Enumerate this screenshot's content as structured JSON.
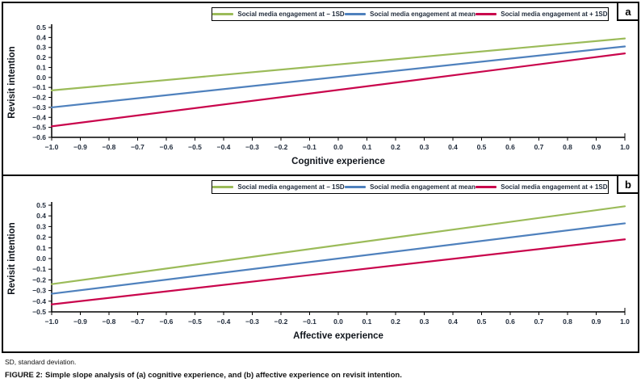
{
  "figure": {
    "footnote": "SD, standard deviation.",
    "caption_label": "FIGURE 2:",
    "caption_text": "Simple slope analysis of (a) cognitive experience, and (b) affective experience on revisit intention."
  },
  "colors": {
    "minus1sd_green": "#9BBB59",
    "mean_blue": "#4F81BD",
    "plus1sd_red": "#C9054C",
    "axis_line": "#000000",
    "tick_text": "#1F2A3A",
    "title_text": "#10151C"
  },
  "chart_data": [
    {
      "type": "line",
      "panel_label": "a",
      "title": "",
      "xlabel": "Cognitive experience",
      "ylabel": "Revisit intention",
      "xlim": [
        -1.0,
        1.0
      ],
      "ylim": [
        -0.6,
        0.5
      ],
      "grid": false,
      "legend_position": "top",
      "x_ticks": [
        -1.0,
        -0.9,
        -0.8,
        -0.7,
        -0.6,
        -0.5,
        -0.4,
        -0.3,
        -0.2,
        -0.1,
        0.0,
        0.1,
        0.2,
        0.3,
        0.4,
        0.5,
        0.6,
        0.7,
        0.8,
        0.9,
        1.0
      ],
      "x_tick_labels": [
        "−1.0",
        "−0.9",
        "−0.8",
        "−0.7",
        "−0.6",
        "−0.5",
        "−0.4",
        "−0.3",
        "−0.2",
        "−0.1",
        "0.0",
        "0.1",
        "0.2",
        "0.3",
        "0.4",
        "0.5",
        "0.6",
        "0.7",
        "0.8",
        "0.9",
        "1.0"
      ],
      "y_ticks": [
        0.5,
        0.4,
        0.3,
        0.2,
        0.1,
        0.0,
        -0.1,
        -0.2,
        -0.3,
        -0.4,
        -0.5,
        -0.6
      ],
      "y_tick_labels": [
        "0.5",
        "0.4",
        "0.3",
        "0.2",
        "0.1",
        "0.0",
        "−0.1",
        "−0.2",
        "−0.3",
        "−0.4",
        "−0.5",
        "−0.6"
      ],
      "series": [
        {
          "name": "Social media engagement at − 1SD",
          "color": "#9BBB59",
          "x": [
            -1.0,
            1.0
          ],
          "y": [
            -0.13,
            0.39
          ]
        },
        {
          "name": "Social media engagement at mean",
          "color": "#4F81BD",
          "x": [
            -1.0,
            1.0
          ],
          "y": [
            -0.3,
            0.31
          ]
        },
        {
          "name": "Social media engagement at + 1SD",
          "color": "#C9054C",
          "x": [
            -1.0,
            1.0
          ],
          "y": [
            -0.49,
            0.24
          ]
        }
      ]
    },
    {
      "type": "line",
      "panel_label": "b",
      "title": "",
      "xlabel": "Affective experience",
      "ylabel": "Revisit intention",
      "xlim": [
        -1.0,
        1.0
      ],
      "ylim": [
        -0.5,
        0.5
      ],
      "grid": false,
      "legend_position": "top",
      "x_ticks": [
        -1.0,
        -0.9,
        -0.8,
        -0.7,
        -0.6,
        -0.5,
        -0.4,
        -0.3,
        -0.2,
        -0.1,
        0.0,
        0.1,
        0.2,
        0.3,
        0.4,
        0.5,
        0.6,
        0.7,
        0.8,
        0.9,
        1.0
      ],
      "x_tick_labels": [
        "−1.0",
        "−0.9",
        "−0.8",
        "−0.7",
        "−0.6",
        "−0.5",
        "−0.4",
        "−0.3",
        "−0.2",
        "−0.1",
        "0.0",
        "0.1",
        "0.2",
        "0.3",
        "0.4",
        "0.5",
        "0.6",
        "0.7",
        "0.8",
        "0.9",
        "1.0"
      ],
      "y_ticks": [
        0.5,
        0.4,
        0.3,
        0.2,
        0.1,
        0.0,
        -0.1,
        -0.2,
        -0.3,
        -0.4,
        -0.5
      ],
      "y_tick_labels": [
        "0.5",
        "0.4",
        "0.3",
        "0.2",
        "0.1",
        "0.0",
        "−0.1",
        "−0.2",
        "−0.3",
        "−0.4",
        "−0.5"
      ],
      "series": [
        {
          "name": "Social media engagement at − 1SD",
          "color": "#9BBB59",
          "x": [
            -1.0,
            1.0
          ],
          "y": [
            -0.24,
            0.49
          ]
        },
        {
          "name": "Social media engagement at mean",
          "color": "#4F81BD",
          "x": [
            -1.0,
            1.0
          ],
          "y": [
            -0.33,
            0.33
          ]
        },
        {
          "name": "Social media engagement at + 1SD",
          "color": "#C9054C",
          "x": [
            -1.0,
            1.0
          ],
          "y": [
            -0.43,
            0.18
          ]
        }
      ]
    }
  ]
}
